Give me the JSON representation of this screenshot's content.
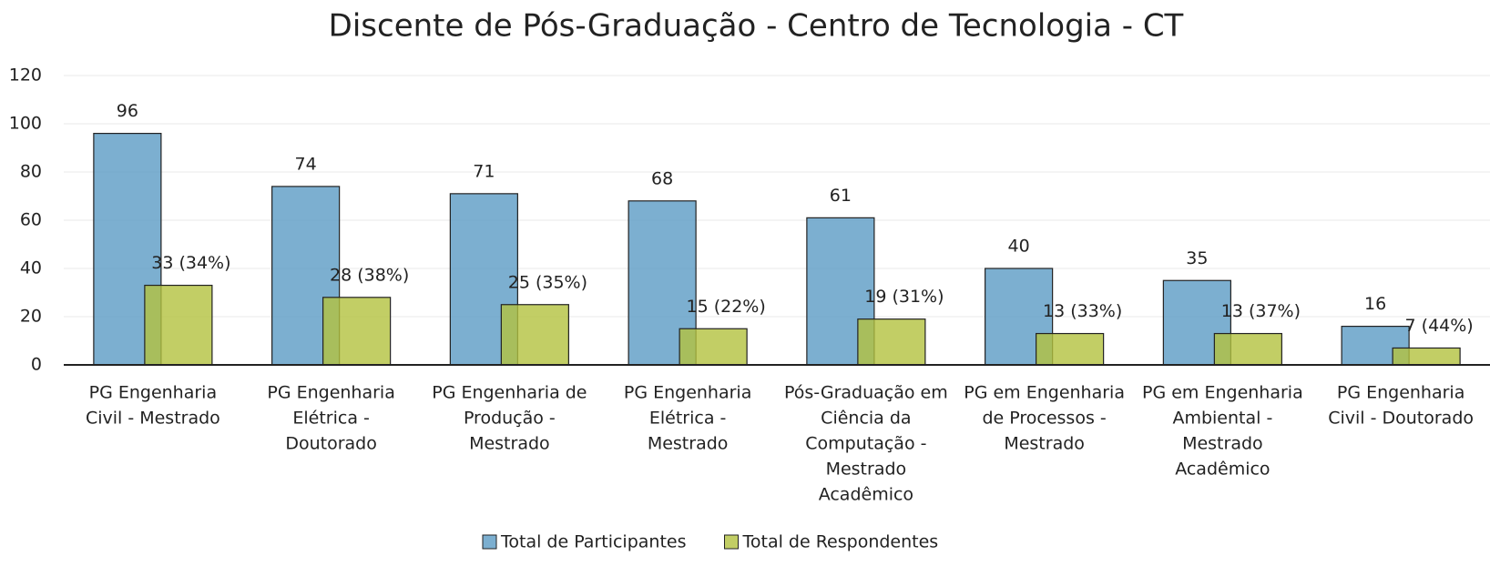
{
  "chart_data": {
    "type": "bar",
    "title": "Discente de Pós-Graduação - Centro de Tecnologia - CT",
    "categories": [
      [
        "PG Engenharia",
        "Civil - Mestrado"
      ],
      [
        "PG Engenharia",
        "Elétrica -",
        "Doutorado"
      ],
      [
        "PG Engenharia de",
        "Produção -",
        "Mestrado"
      ],
      [
        "PG Engenharia",
        "Elétrica -",
        "Mestrado"
      ],
      [
        "Pós-Graduação em",
        "Ciência da",
        "Computação -",
        "Mestrado",
        "Acadêmico"
      ],
      [
        "PG em Engenharia",
        "de Processos -",
        "Mestrado"
      ],
      [
        "PG em Engenharia",
        "Ambiental -",
        "Mestrado",
        "Acadêmico"
      ],
      [
        "PG Engenharia",
        "Civil - Doutorado"
      ]
    ],
    "series": [
      {
        "name": "Total de Participantes",
        "color": "#5b9bc4",
        "values": [
          96,
          74,
          71,
          68,
          61,
          40,
          35,
          16
        ]
      },
      {
        "name": "Total de Respondentes",
        "color": "#b3c23f",
        "values": [
          33,
          28,
          25,
          15,
          19,
          13,
          13,
          7
        ],
        "value_labels": [
          "33 (34%)",
          "28 (38%)",
          "25 (35%)",
          "15 (22%)",
          "19 (31%)",
          "13 (33%)",
          "13 (37%)",
          "7 (44%)"
        ]
      }
    ],
    "ylim": [
      0,
      120
    ],
    "yticks": [
      0,
      20,
      40,
      60,
      80,
      100,
      120
    ],
    "grid": true,
    "legend": "bottom"
  }
}
